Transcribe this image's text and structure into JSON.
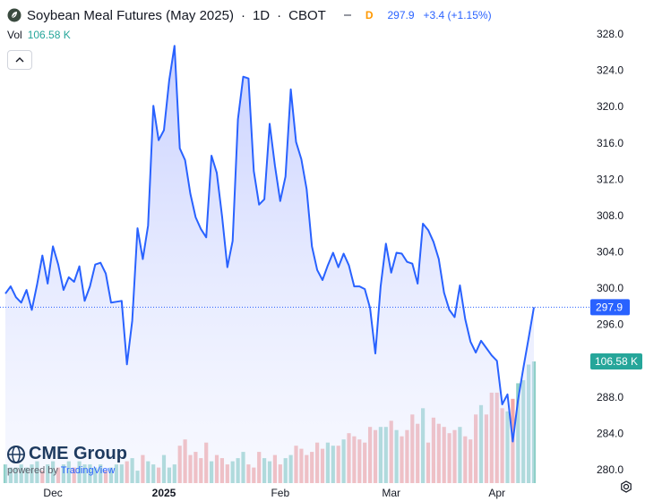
{
  "header": {
    "title": "Soybean Meal Futures (May 2025)",
    "interval": "1D",
    "exchange": "CBOT",
    "badge": "D",
    "price": "297.9",
    "change": "+3.4 (+1.15%)",
    "separator": "·"
  },
  "volume_row": {
    "label": "Vol",
    "value": "106.58 K"
  },
  "logo": {
    "name": "CME Group",
    "powered_by": "powered by",
    "brand": "TradingView"
  },
  "colors": {
    "line": "#2962ff",
    "area_top": "#c9d3ff",
    "vol_up": "#8fd0c8",
    "vol_down": "#f2a7a6",
    "volume_label_bg": "#26a69a",
    "price_label_bg": "#2962ff"
  },
  "chart_data": {
    "type": "area",
    "title": "Soybean Meal Futures (May 2025) · 1D · CBOT",
    "y_axis_ticks": [
      "328.0",
      "324.0",
      "320.0",
      "316.0",
      "312.0",
      "308.0",
      "304.0",
      "300.0",
      "296.0",
      "292.0",
      "288.0",
      "284.0",
      "280.0"
    ],
    "ylim": [
      280,
      330
    ],
    "x_axis_ticks": [
      "Dec",
      "2025",
      "Feb",
      "Mar",
      "Apr"
    ],
    "last_price_label": "297.9",
    "last_volume_label": "106.58 K",
    "series": [
      {
        "name": "price",
        "values": [
          299.4,
          300.2,
          299.0,
          298.4,
          299.8,
          297.6,
          300.4,
          303.6,
          300.5,
          304.6,
          302.6,
          299.8,
          301.2,
          300.7,
          302.4,
          298.6,
          300.2,
          302.6,
          302.8,
          301.6,
          298.4,
          298.5,
          298.6,
          291.6,
          296.4,
          306.6,
          303.2,
          306.9,
          320.1,
          316.3,
          317.4,
          322.9,
          326.7,
          315.4,
          314.1,
          310.4,
          307.8,
          306.5,
          305.6,
          314.6,
          312.7,
          307.9,
          302.3,
          305.2,
          318.6,
          323.3,
          323.1,
          312.9,
          309.2,
          309.8,
          318.1,
          313.5,
          309.6,
          312.3,
          321.9,
          316.1,
          314.2,
          310.9,
          304.6,
          302.0,
          300.9,
          302.5,
          303.9,
          302.3,
          303.8,
          302.5,
          300.2,
          300.2,
          299.9,
          297.8,
          292.8,
          300.2,
          304.9,
          301.7,
          303.9,
          303.8,
          302.9,
          302.7,
          300.5,
          307.1,
          306.4,
          305.1,
          303.2,
          299.5,
          297.6,
          296.8,
          300.3,
          296.6,
          294.1,
          292.9,
          294.2,
          293.4,
          292.6,
          292.0,
          287.2,
          288.3,
          283.1,
          287.7,
          291.2,
          294.5,
          297.9
        ]
      },
      {
        "name": "volume",
        "values": [
          6,
          5,
          5,
          6,
          5,
          6,
          7,
          4,
          6,
          7,
          5,
          6,
          7,
          5,
          7,
          6,
          6,
          5,
          6,
          4,
          5,
          6,
          6,
          7,
          8,
          4,
          9,
          7,
          6,
          5,
          9,
          5,
          6,
          12,
          14,
          9,
          10,
          8,
          13,
          7,
          9,
          8,
          6,
          7,
          8,
          10,
          6,
          5,
          10,
          8,
          7,
          9,
          6,
          8,
          9,
          12,
          11,
          9,
          10,
          13,
          11,
          13,
          12,
          12,
          14,
          16,
          15,
          14,
          13,
          18,
          17,
          18,
          18,
          20,
          17,
          15,
          17,
          22,
          19,
          24,
          13,
          21,
          19,
          18,
          16,
          17,
          18,
          15,
          14,
          22,
          25,
          22,
          29,
          29,
          24,
          23,
          27,
          32,
          33,
          38,
          39
        ],
        "directions": [
          "u",
          "u",
          "u",
          "u",
          "u",
          "u",
          "u",
          "d",
          "u",
          "u",
          "d",
          "u",
          "u",
          "d",
          "u",
          "u",
          "u",
          "u",
          "u",
          "d",
          "u",
          "u",
          "u",
          "d",
          "u",
          "u",
          "d",
          "u",
          "u",
          "d",
          "u",
          "u",
          "u",
          "d",
          "d",
          "d",
          "d",
          "d",
          "d",
          "u",
          "d",
          "d",
          "d",
          "u",
          "u",
          "u",
          "d",
          "d",
          "d",
          "u",
          "u",
          "d",
          "d",
          "u",
          "u",
          "d",
          "d",
          "d",
          "d",
          "d",
          "d",
          "u",
          "u",
          "d",
          "u",
          "d",
          "d",
          "d",
          "d",
          "d",
          "d",
          "u",
          "u",
          "d",
          "u",
          "d",
          "d",
          "d",
          "d",
          "u",
          "d",
          "d",
          "d",
          "d",
          "d",
          "d",
          "u",
          "d",
          "d",
          "d",
          "u",
          "d",
          "d",
          "d",
          "d",
          "u",
          "d",
          "u",
          "u",
          "u",
          "u"
        ]
      }
    ]
  }
}
